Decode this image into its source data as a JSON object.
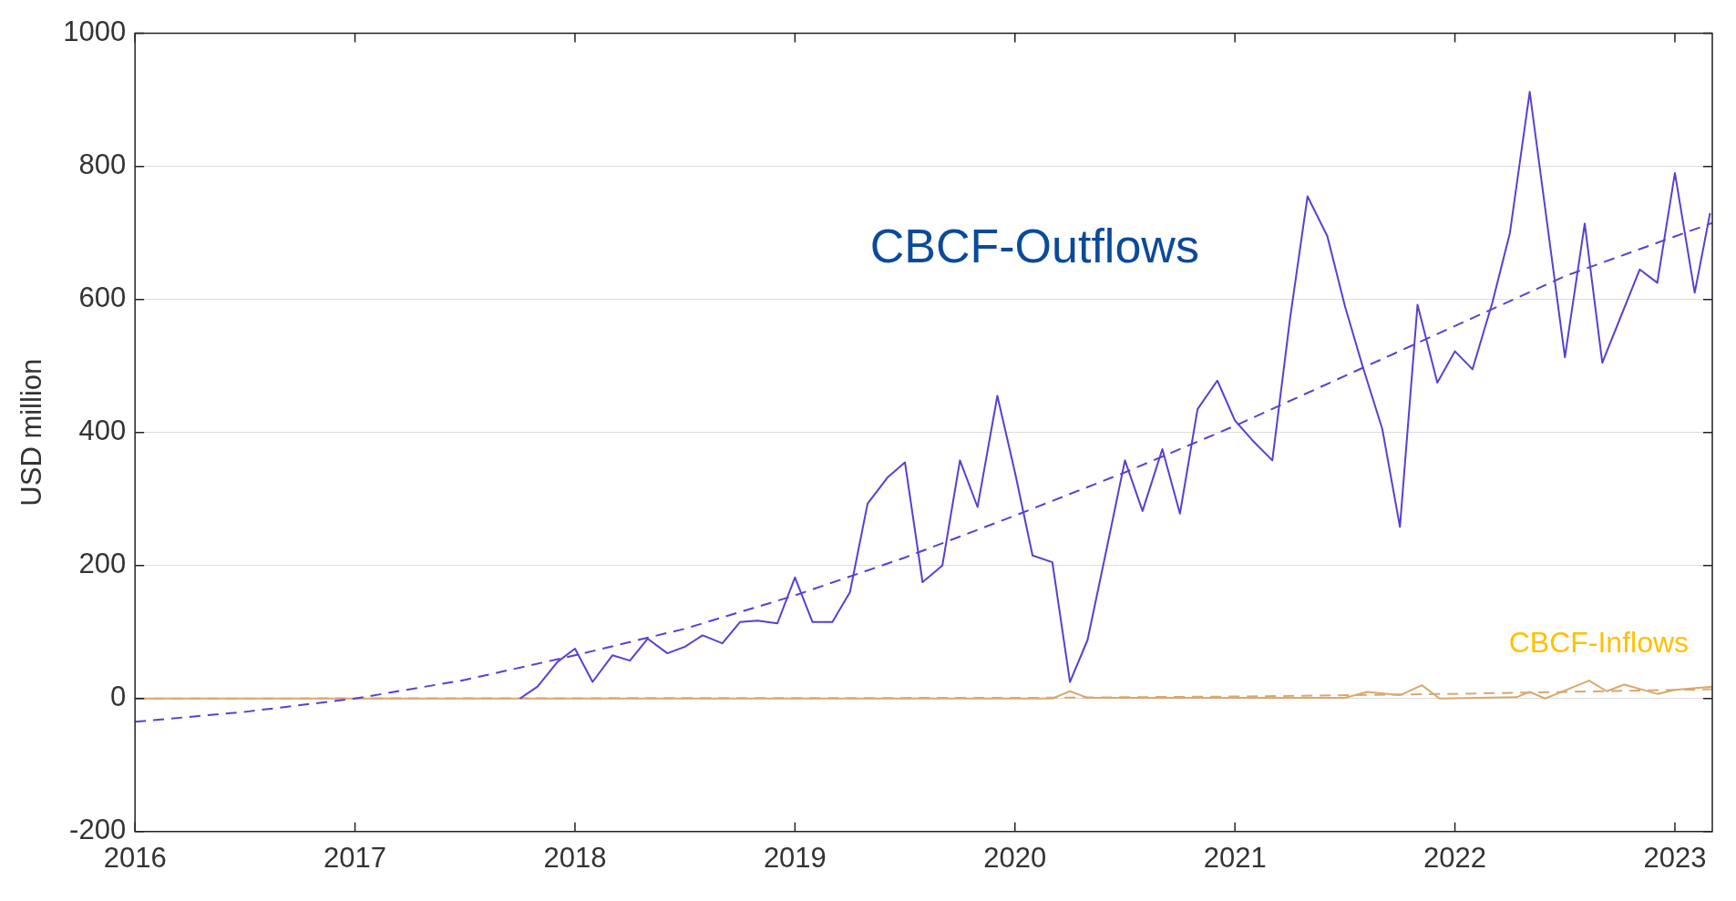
{
  "chart_data": {
    "type": "line",
    "ylabel": "USD million",
    "xlim": [
      2016,
      2023.17
    ],
    "xticks": [
      2016,
      2017,
      2018,
      2019,
      2020,
      2021,
      2022,
      2023
    ],
    "ylim": [
      -200,
      1000
    ],
    "yticks": [
      -200,
      0,
      200,
      400,
      600,
      800,
      1000
    ],
    "grid": "y",
    "legend": false,
    "marker": "none",
    "series": [
      {
        "name": "CBCF-Outflows",
        "color": "#5a3fd0",
        "line_style": "solid",
        "x": [
          2017.75,
          2017.83,
          2017.92,
          2018.0,
          2018.08,
          2018.17,
          2018.25,
          2018.33,
          2018.42,
          2018.5,
          2018.58,
          2018.67,
          2018.75,
          2018.83,
          2018.92,
          2019.0,
          2019.08,
          2019.17,
          2019.25,
          2019.33,
          2019.42,
          2019.5,
          2019.58,
          2019.67,
          2019.75,
          2019.83,
          2019.92,
          2020.0,
          2020.08,
          2020.17,
          2020.25,
          2020.33,
          2020.42,
          2020.5,
          2020.58,
          2020.67,
          2020.75,
          2020.83,
          2020.92,
          2021.0,
          2021.08,
          2021.17,
          2021.25,
          2021.33,
          2021.42,
          2021.5,
          2021.58,
          2021.67,
          2021.75,
          2021.83,
          2021.92,
          2022.0,
          2022.08,
          2022.17,
          2022.25,
          2022.34,
          2022.5,
          2022.59,
          2022.67,
          2022.84,
          2022.92,
          2023.0,
          2023.09,
          2023.16
        ],
        "values": [
          0,
          18,
          55,
          75,
          25,
          65,
          57,
          90,
          68,
          78,
          95,
          83,
          115,
          117,
          113,
          182,
          115,
          115,
          160,
          293,
          332,
          355,
          175,
          200,
          358,
          288,
          455,
          340,
          215,
          205,
          25,
          88,
          230,
          358,
          282,
          375,
          278,
          435,
          478,
          418,
          388,
          358,
          570,
          755,
          695,
          590,
          500,
          405,
          258,
          592,
          475,
          522,
          495,
          595,
          700,
          912,
          513,
          714,
          505,
          645,
          625,
          790,
          610,
          730
        ]
      },
      {
        "color": "#5a3fd0",
        "line_style": "dashed",
        "x": [
          2016,
          2016.5,
          2017,
          2017.5,
          2018,
          2018.5,
          2019,
          2019.5,
          2020,
          2020.5,
          2021,
          2021.5,
          2022,
          2022.5,
          2023.17
        ],
        "values": [
          -35,
          -20,
          0,
          28,
          65,
          105,
          155,
          212,
          275,
          340,
          410,
          485,
          560,
          635,
          715
        ]
      },
      {
        "name": "CBCF-Inflows",
        "color": "#d9a86c",
        "line_style": "solid",
        "x": [
          2016,
          2020.17,
          2020.25,
          2020.33,
          2021.5,
          2021.6,
          2021.75,
          2021.85,
          2021.93,
          2022.28,
          2022.34,
          2022.41,
          2022.61,
          2022.69,
          2022.77,
          2022.92,
          2023.0,
          2023.17
        ],
        "values": [
          0,
          0,
          11,
          1,
          1,
          10,
          5,
          20,
          0,
          2,
          10,
          0,
          27,
          11,
          21,
          7,
          13,
          18
        ]
      },
      {
        "color": "#d9a86c",
        "line_style": "dashed",
        "x": [
          2016,
          2020,
          2021,
          2022,
          2023.17
        ],
        "values": [
          0,
          1,
          3,
          7,
          14
        ]
      }
    ]
  }
}
